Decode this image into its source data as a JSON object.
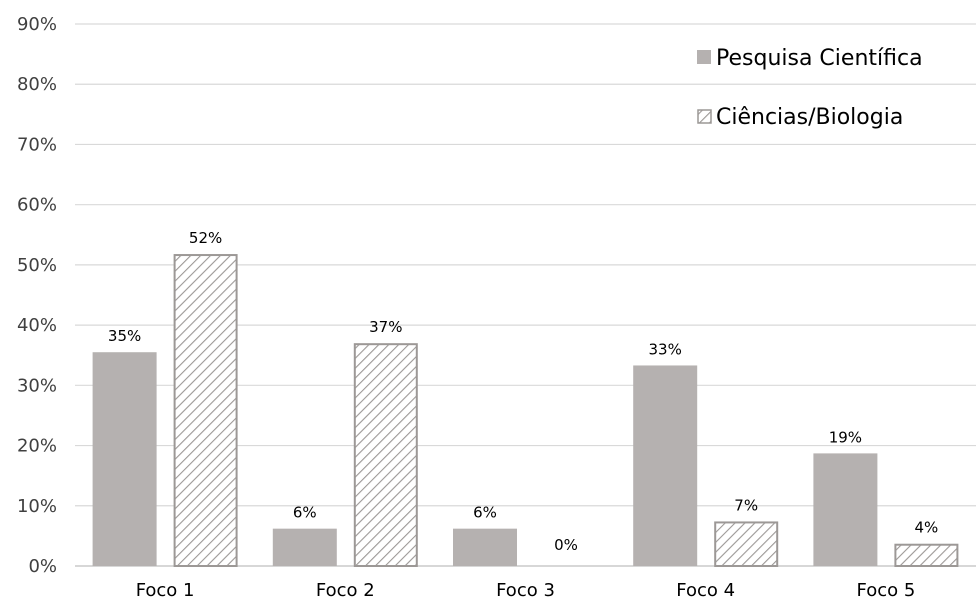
{
  "chart_data": {
    "type": "bar",
    "categories": [
      "Foco 1",
      "Foco 2",
      "Foco 3",
      "Foco 4",
      "Foco 5"
    ],
    "series": [
      {
        "name": "Pesquisa Científica",
        "values": [
          35.5,
          6.2,
          6.2,
          33.3,
          18.7
        ],
        "labels": [
          "35%",
          "6%",
          "6%",
          "33%",
          "19%"
        ],
        "color": "#b5b1b0",
        "fill": "solid"
      },
      {
        "name": "Ciências/Biologia",
        "values": [
          51.8,
          37.0,
          0,
          7.4,
          3.7
        ],
        "labels": [
          "52%",
          "37%",
          "0%",
          "7%",
          "4%"
        ],
        "color": "#9c9896",
        "fill": "diagonal-hatch"
      }
    ],
    "yticks": [
      "0%",
      "10%",
      "20%",
      "30%",
      "40%",
      "50%",
      "60%",
      "70%",
      "80%",
      "90%"
    ],
    "ylim": [
      0,
      90
    ],
    "grid": true,
    "legend_position": "top-right",
    "title": "",
    "xlabel": "",
    "ylabel": ""
  }
}
